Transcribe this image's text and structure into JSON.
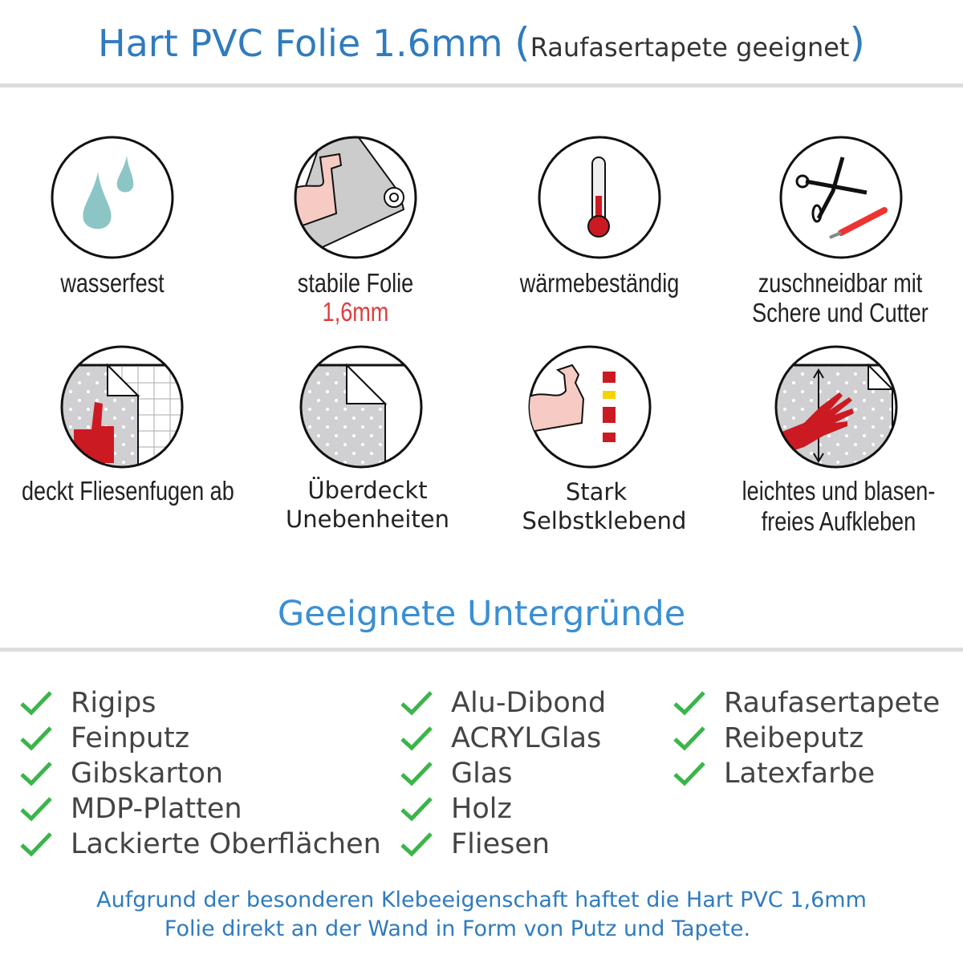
{
  "header": {
    "title": "Hart PVC Folie 1.6mm",
    "subtitle": "Raufasertapete geeignet",
    "open_paren": "(",
    "close_paren": ")"
  },
  "features": [
    {
      "icon": "water-drops-icon",
      "label": "wasserfest"
    },
    {
      "icon": "strong-arm-foil-icon",
      "label": "stabile Folie",
      "note": "1,6mm"
    },
    {
      "icon": "thermometer-icon",
      "label": "wärmebeständig"
    },
    {
      "icon": "scissors-cutter-icon",
      "label": "zuschneidbar mit",
      "label2": "Schere und Cutter"
    },
    {
      "icon": "thumbs-up-tiles-icon",
      "label": "deckt Fliesenfugen ab"
    },
    {
      "icon": "foil-peel-icon",
      "label": "Überdeckt",
      "label2": "Unebenheiten"
    },
    {
      "icon": "arm-glue-icon",
      "label": "Stark",
      "label2": "Selbstklebend"
    },
    {
      "icon": "hand-apply-icon",
      "label": "leichtes und blasen-",
      "label2": "freies Aufkleben"
    }
  ],
  "section": {
    "title": "Geeignete Untergründe"
  },
  "surfaces": {
    "col1": [
      "Rigips",
      "Feinputz",
      "Gibskarton",
      "MDP-Platten",
      "Lackierte Oberflächen"
    ],
    "col2": [
      "Alu-Dibond",
      "ACRYLGlas",
      "Glas",
      "Holz",
      "Fliesen"
    ],
    "col3": [
      "Raufasertapete",
      "Reibeputz",
      "Latexfarbe"
    ]
  },
  "footer": {
    "line1": "Aufgrund der besonderen Klebeeigenschaft haftet die Hart PVC 1,6mm",
    "line2": "Folie direkt an der Wand in Form von Putz und Tapete."
  },
  "colors": {
    "title_blue": "#2f7bbf",
    "section_blue": "#3a8fd4",
    "check_green": "#3bb54a",
    "accent_red": "#e03c3c"
  }
}
